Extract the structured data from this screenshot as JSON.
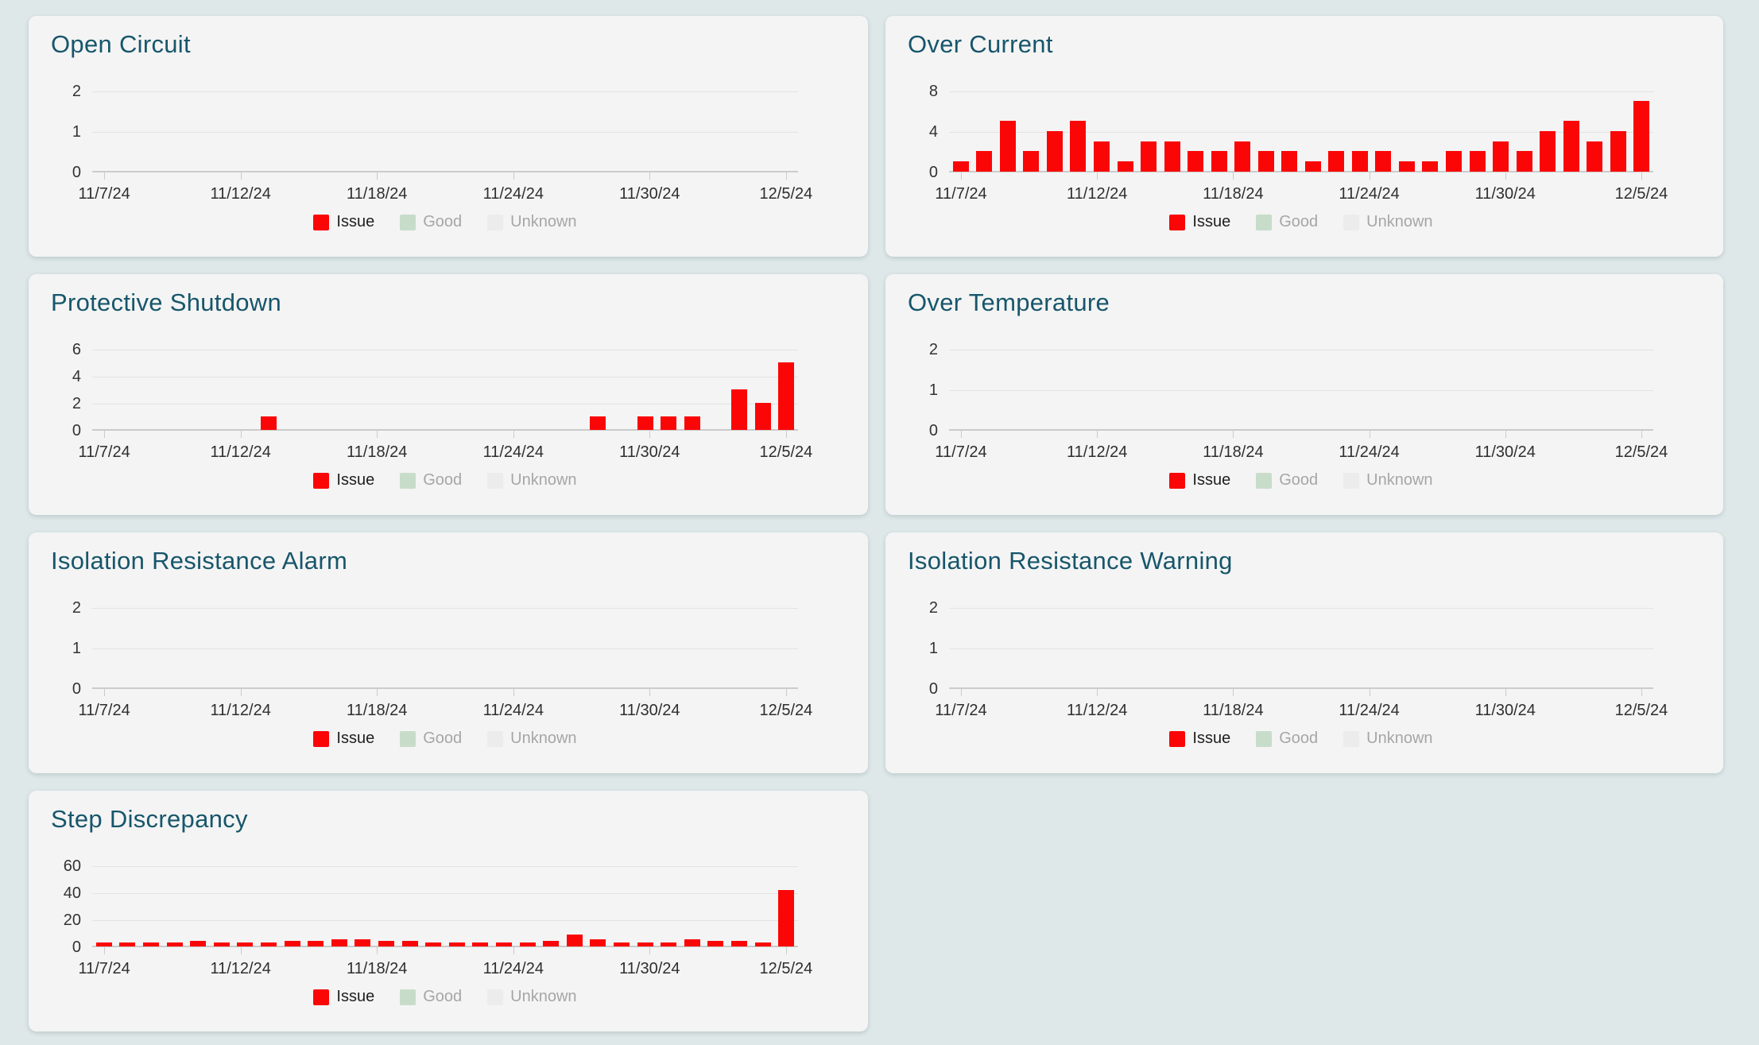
{
  "page": {
    "background_color": "#dee8e9",
    "card_background_color": "#f4f4f4",
    "title_color": "#17566b"
  },
  "legend": {
    "items": [
      {
        "label": "Issue",
        "color": "#fb0607",
        "label_color": "#1f1f1f"
      },
      {
        "label": "Good",
        "color": "#c8dcca",
        "label_color": "#a6a6a6"
      },
      {
        "label": "Unknown",
        "color": "#ececec",
        "label_color": "#a6a6a6"
      }
    ]
  },
  "x_axis": {
    "tick_labels": [
      "11/7/24",
      "11/12/24",
      "11/18/24",
      "11/24/24",
      "11/30/24",
      "12/5/24"
    ]
  },
  "chart_data": [
    {
      "type": "bar",
      "title": "Open Circuit",
      "series": [
        {
          "name": "Issue",
          "color": "#fb0607",
          "values": [
            0,
            0,
            0,
            0,
            0,
            0,
            0,
            0,
            0,
            0,
            0,
            0,
            0,
            0,
            0,
            0,
            0,
            0,
            0,
            0,
            0,
            0,
            0,
            0,
            0,
            0,
            0,
            0,
            0,
            0
          ]
        }
      ],
      "x_tick_labels": [
        "11/7/24",
        "11/12/24",
        "11/18/24",
        "11/24/24",
        "11/30/24",
        "12/5/24"
      ],
      "y_ticks": [
        2,
        1,
        0
      ],
      "ylim": [
        0,
        2
      ],
      "legend_entries": [
        "Issue",
        "Good",
        "Unknown"
      ],
      "grid": true,
      "legend_position": "bottom-center"
    },
    {
      "type": "bar",
      "title": "Over Current",
      "series": [
        {
          "name": "Issue",
          "color": "#fb0607",
          "values": [
            1,
            2,
            5,
            2,
            4,
            5,
            3,
            1,
            3,
            3,
            2,
            2,
            3,
            2,
            2,
            1,
            2,
            2,
            2,
            1,
            1,
            2,
            2,
            3,
            2,
            4,
            5,
            3,
            4,
            7
          ]
        }
      ],
      "x_tick_labels": [
        "11/7/24",
        "11/12/24",
        "11/18/24",
        "11/24/24",
        "11/30/24",
        "12/5/24"
      ],
      "y_ticks": [
        8,
        4,
        0
      ],
      "ylim": [
        0,
        8
      ],
      "legend_entries": [
        "Issue",
        "Good",
        "Unknown"
      ],
      "grid": true,
      "legend_position": "bottom-center"
    },
    {
      "type": "bar",
      "title": "Protective Shutdown",
      "series": [
        {
          "name": "Issue",
          "color": "#fb0607",
          "values": [
            0,
            0,
            0,
            0,
            0,
            0,
            0,
            1,
            0,
            0,
            0,
            0,
            0,
            0,
            0,
            0,
            0,
            0,
            0,
            0,
            0,
            1,
            0,
            1,
            1,
            1,
            0,
            3,
            2,
            5
          ]
        }
      ],
      "x_tick_labels": [
        "11/7/24",
        "11/12/24",
        "11/18/24",
        "11/24/24",
        "11/30/24",
        "12/5/24"
      ],
      "y_ticks": [
        6,
        4,
        2,
        0
      ],
      "ylim": [
        0,
        6
      ],
      "legend_entries": [
        "Issue",
        "Good",
        "Unknown"
      ],
      "grid": true,
      "legend_position": "bottom-center"
    },
    {
      "type": "bar",
      "title": "Over Temperature",
      "series": [
        {
          "name": "Issue",
          "color": "#fb0607",
          "values": [
            0,
            0,
            0,
            0,
            0,
            0,
            0,
            0,
            0,
            0,
            0,
            0,
            0,
            0,
            0,
            0,
            0,
            0,
            0,
            0,
            0,
            0,
            0,
            0,
            0,
            0,
            0,
            0,
            0,
            0
          ]
        }
      ],
      "x_tick_labels": [
        "11/7/24",
        "11/12/24",
        "11/18/24",
        "11/24/24",
        "11/30/24",
        "12/5/24"
      ],
      "y_ticks": [
        2,
        1,
        0
      ],
      "ylim": [
        0,
        2
      ],
      "legend_entries": [
        "Issue",
        "Good",
        "Unknown"
      ],
      "grid": true,
      "legend_position": "bottom-center"
    },
    {
      "type": "bar",
      "title": "Isolation Resistance Alarm",
      "series": [
        {
          "name": "Issue",
          "color": "#fb0607",
          "values": [
            0,
            0,
            0,
            0,
            0,
            0,
            0,
            0,
            0,
            0,
            0,
            0,
            0,
            0,
            0,
            0,
            0,
            0,
            0,
            0,
            0,
            0,
            0,
            0,
            0,
            0,
            0,
            0,
            0,
            0
          ]
        }
      ],
      "x_tick_labels": [
        "11/7/24",
        "11/12/24",
        "11/18/24",
        "11/24/24",
        "11/30/24",
        "12/5/24"
      ],
      "y_ticks": [
        2,
        1,
        0
      ],
      "ylim": [
        0,
        2
      ],
      "legend_entries": [
        "Issue",
        "Good",
        "Unknown"
      ],
      "grid": true,
      "legend_position": "bottom-center"
    },
    {
      "type": "bar",
      "title": "Isolation Resistance Warning",
      "series": [
        {
          "name": "Issue",
          "color": "#fb0607",
          "values": [
            0,
            0,
            0,
            0,
            0,
            0,
            0,
            0,
            0,
            0,
            0,
            0,
            0,
            0,
            0,
            0,
            0,
            0,
            0,
            0,
            0,
            0,
            0,
            0,
            0,
            0,
            0,
            0,
            0,
            0
          ]
        }
      ],
      "x_tick_labels": [
        "11/7/24",
        "11/12/24",
        "11/18/24",
        "11/24/24",
        "11/30/24",
        "12/5/24"
      ],
      "y_ticks": [
        2,
        1,
        0
      ],
      "ylim": [
        0,
        2
      ],
      "legend_entries": [
        "Issue",
        "Good",
        "Unknown"
      ],
      "grid": true,
      "legend_position": "bottom-center"
    },
    {
      "type": "bar",
      "title": "Step Discrepancy",
      "series": [
        {
          "name": "Issue",
          "color": "#fb0607",
          "values": [
            3,
            3,
            3,
            3,
            4,
            3,
            3,
            3,
            4,
            4,
            5,
            5,
            4,
            4,
            3,
            3,
            3,
            3,
            3,
            4,
            9,
            5,
            3,
            3,
            3,
            5,
            4,
            4,
            3,
            42
          ]
        }
      ],
      "x_tick_labels": [
        "11/7/24",
        "11/12/24",
        "11/18/24",
        "11/24/24",
        "11/30/24",
        "12/5/24"
      ],
      "y_ticks": [
        60,
        40,
        20,
        0
      ],
      "ylim": [
        0,
        60
      ],
      "legend_entries": [
        "Issue",
        "Good",
        "Unknown"
      ],
      "grid": true,
      "legend_position": "bottom-center"
    }
  ]
}
